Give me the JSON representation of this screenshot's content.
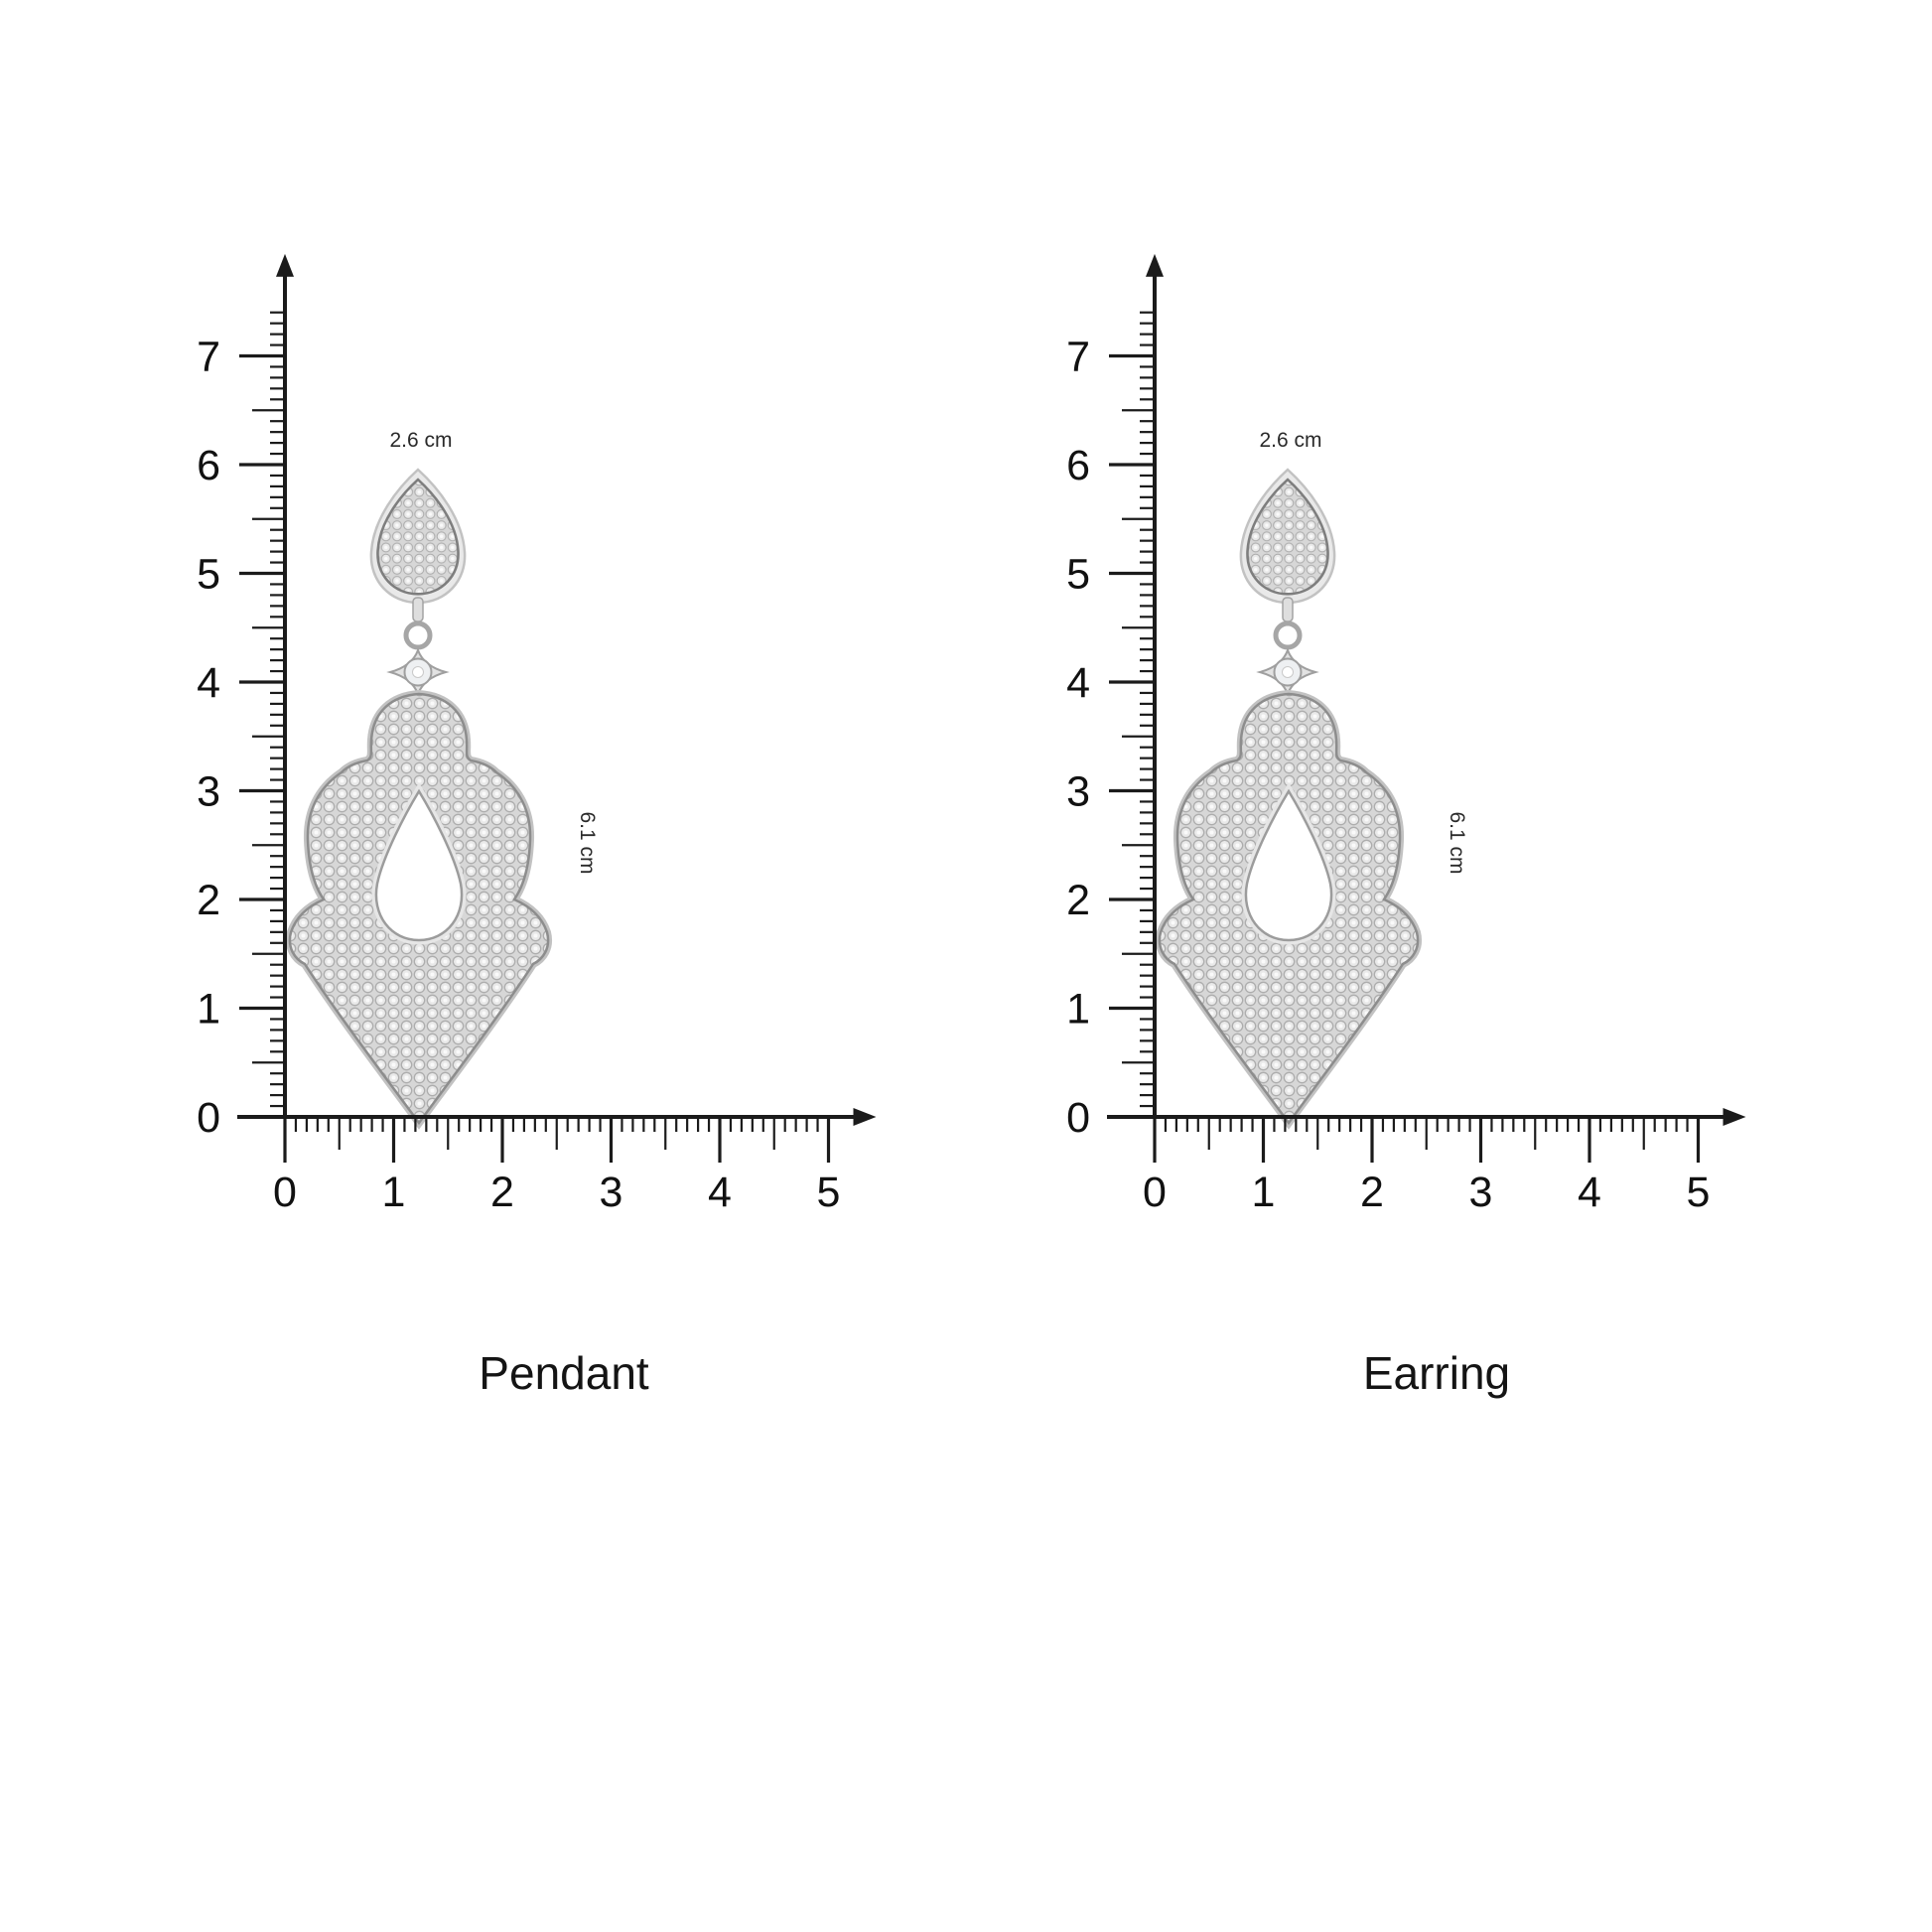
{
  "page": {
    "background": "#ffffff",
    "description": "Size guide diagram showing a pave crystal teardrop jewelry piece measured against cm rulers, shown twice"
  },
  "ruler": {
    "unit": "cm",
    "x_max_cm": 5,
    "y_max_cm": 7,
    "y_overhang_cm": 0.4,
    "minor_per_cm": 10,
    "x_tick_labels": [
      "0",
      "1",
      "2",
      "3",
      "4",
      "5"
    ],
    "y_tick_labels": [
      "0",
      "1",
      "2",
      "3",
      "4",
      "5",
      "6",
      "7"
    ]
  },
  "panels": [
    {
      "name": "pendant",
      "caption": "Pendant",
      "width_label": "2.6 cm",
      "height_label": "6.1 cm",
      "item": "pave crystal teardrop stud with ornate openwork drop"
    },
    {
      "name": "earring",
      "caption": "Earring",
      "width_label": "2.6 cm",
      "height_label": "6.1 cm",
      "item": "pave crystal teardrop stud with ornate openwork drop"
    }
  ],
  "colors": {
    "axis": "#1b1b1b",
    "tick_label": "#111111",
    "caption_text": "#141414",
    "dimension_text": "#2a2a2a",
    "jewel_rim_light": "#e9e9e9",
    "jewel_rim_stroke": "#c2c2c2",
    "jewel_outline": "#8d8d8d",
    "pave_base": "#d7d7d7",
    "pave_stone": "#e9e9e9",
    "pave_stone_edge": "#adadad",
    "pave_highlight": "#fafafa",
    "hole_fill": "#ffffff"
  }
}
